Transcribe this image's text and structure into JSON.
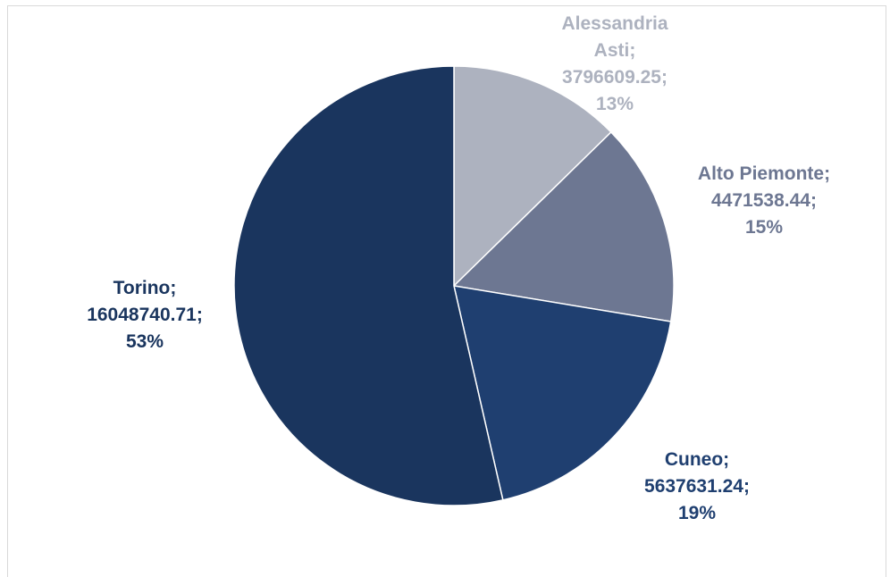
{
  "chart_data": {
    "type": "pie",
    "title": "",
    "slices": [
      {
        "name": "Alessandria Asti",
        "name_lines": [
          "Alessandria",
          "Asti;"
        ],
        "value_text": "3796609.25;",
        "percent_text": "13%",
        "value": 3796609.25,
        "color": "#adb2bf",
        "label_color": "#adb2bf"
      },
      {
        "name": "Alto Piemonte",
        "name_lines": [
          "Alto Piemonte;"
        ],
        "value_text": "4471538.44;",
        "percent_text": "15%",
        "value": 4471538.44,
        "color": "#6d7792",
        "label_color": "#6d7792"
      },
      {
        "name": "Cuneo",
        "name_lines": [
          "Cuneo;"
        ],
        "value_text": "5637631.24;",
        "percent_text": "19%",
        "value": 5637631.24,
        "color": "#1f3f70",
        "label_color": "#1f3f70"
      },
      {
        "name": "Torino",
        "name_lines": [
          "Torino;"
        ],
        "value_text": "16048740.71;",
        "percent_text": "53%",
        "value": 16048740.71,
        "color": "#1a355e",
        "label_color": "#1a355e"
      }
    ],
    "start_angle": "12 o'clock",
    "direction": "clockwise",
    "legend": "none"
  }
}
